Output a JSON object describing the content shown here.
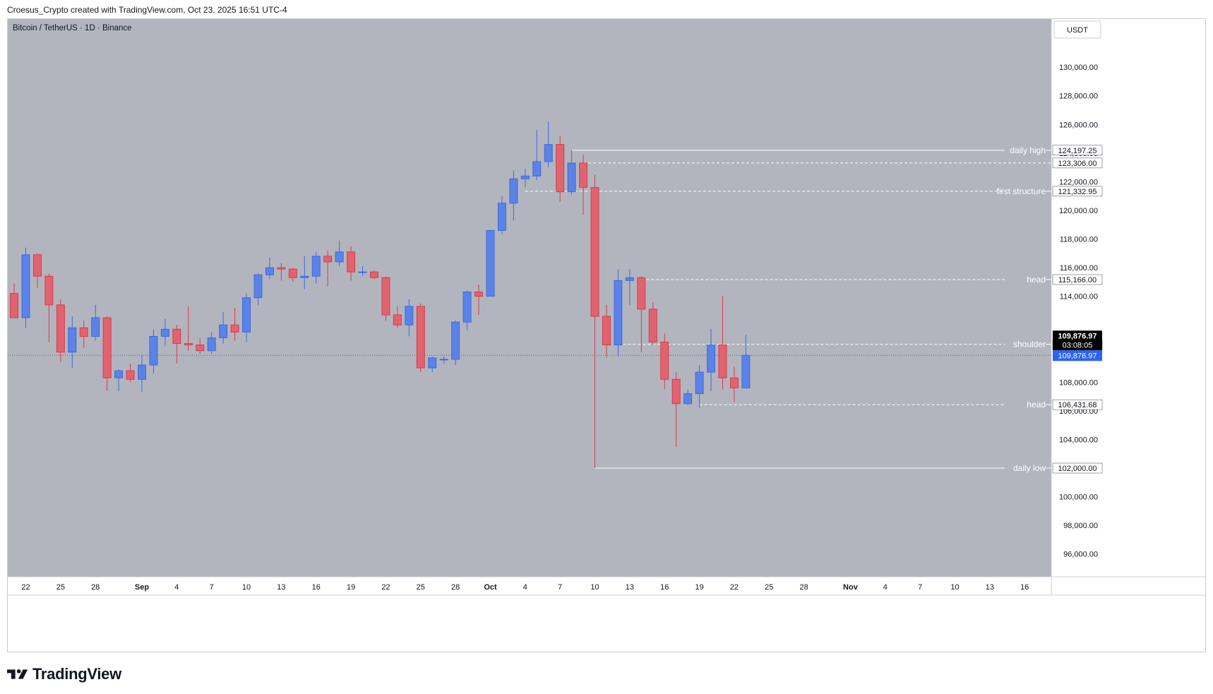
{
  "header": {
    "caption": "Croesus_Crypto created with TradingView.com, Oct 23, 2025 16:51 UTC-4"
  },
  "chart": {
    "symbol_title": "Bitcoin / TetherUS · 1D · Binance",
    "currency_button": "USDT",
    "countdown": "03:08:05",
    "colors": {
      "background": "#b2b5be",
      "up": "#5b82e6",
      "down": "#e06470",
      "wick_up": "#3d6ae0",
      "wick_down": "#d93a4a",
      "line": "#ffffff",
      "last_price_badge": "#2962ff",
      "axis_bg": "#ffffff"
    }
  },
  "footer": {
    "logo_text": "TradingView"
  },
  "chart_data": {
    "type": "candlestick",
    "title": "Bitcoin / TetherUS · 1D · Binance",
    "ylim": [
      95000,
      130500
    ],
    "y_ticks": [
      "96,000.00",
      "98,000.00",
      "100,000.00",
      "102,000.00",
      "104,000.00",
      "106,000.00",
      "108,000.00",
      "110,000.00",
      "114,000.00",
      "116,000.00",
      "118,000.00",
      "120,000.00",
      "122,000.00",
      "124,000.00",
      "126,000.00",
      "128,000.00",
      "130,000.00"
    ],
    "x_ticks": [
      "22",
      "25",
      "28",
      "Sep",
      "4",
      "7",
      "10",
      "13",
      "16",
      "19",
      "22",
      "25",
      "28",
      "Oct",
      "4",
      "7",
      "10",
      "13",
      "16",
      "19",
      "22",
      "25",
      "28",
      "Nov",
      "4",
      "7",
      "10",
      "13",
      "16"
    ],
    "candles": [
      {
        "date": "2025-08-21",
        "o": 114200,
        "h": 114900,
        "l": 112500,
        "c": 112500
      },
      {
        "date": "2025-08-22",
        "o": 112500,
        "h": 117400,
        "l": 111800,
        "c": 116900
      },
      {
        "date": "2025-08-23",
        "o": 116900,
        "h": 117000,
        "l": 114600,
        "c": 115400
      },
      {
        "date": "2025-08-24",
        "o": 115400,
        "h": 115600,
        "l": 110800,
        "c": 113400
      },
      {
        "date": "2025-08-25",
        "o": 113400,
        "h": 113800,
        "l": 109400,
        "c": 110100
      },
      {
        "date": "2025-08-26",
        "o": 110100,
        "h": 112600,
        "l": 109000,
        "c": 111800
      },
      {
        "date": "2025-08-27",
        "o": 111800,
        "h": 112300,
        "l": 110400,
        "c": 111200
      },
      {
        "date": "2025-08-28",
        "o": 111200,
        "h": 113400,
        "l": 110900,
        "c": 112500
      },
      {
        "date": "2025-08-29",
        "o": 112500,
        "h": 112600,
        "l": 107400,
        "c": 108300
      },
      {
        "date": "2025-08-30",
        "o": 108300,
        "h": 108900,
        "l": 107400,
        "c": 108800
      },
      {
        "date": "2025-08-31",
        "o": 108800,
        "h": 109300,
        "l": 108000,
        "c": 108200
      },
      {
        "date": "2025-09-01",
        "o": 108200,
        "h": 109900,
        "l": 107300,
        "c": 109200
      },
      {
        "date": "2025-09-02",
        "o": 109200,
        "h": 111700,
        "l": 108600,
        "c": 111200
      },
      {
        "date": "2025-09-03",
        "o": 111200,
        "h": 112400,
        "l": 110500,
        "c": 111700
      },
      {
        "date": "2025-09-04",
        "o": 111700,
        "h": 112000,
        "l": 109300,
        "c": 110700
      },
      {
        "date": "2025-09-05",
        "o": 110700,
        "h": 113300,
        "l": 110200,
        "c": 110600
      },
      {
        "date": "2025-09-06",
        "o": 110600,
        "h": 111100,
        "l": 110000,
        "c": 110200
      },
      {
        "date": "2025-09-07",
        "o": 110200,
        "h": 111500,
        "l": 110000,
        "c": 111100
      },
      {
        "date": "2025-09-08",
        "o": 111100,
        "h": 112900,
        "l": 110700,
        "c": 112000
      },
      {
        "date": "2025-09-09",
        "o": 112000,
        "h": 113200,
        "l": 110900,
        "c": 111500
      },
      {
        "date": "2025-09-10",
        "o": 111500,
        "h": 114200,
        "l": 110800,
        "c": 113900
      },
      {
        "date": "2025-09-11",
        "o": 113900,
        "h": 115600,
        "l": 113400,
        "c": 115500
      },
      {
        "date": "2025-09-12",
        "o": 115500,
        "h": 116700,
        "l": 115200,
        "c": 116000
      },
      {
        "date": "2025-09-13",
        "o": 116000,
        "h": 116300,
        "l": 115100,
        "c": 115900
      },
      {
        "date": "2025-09-14",
        "o": 115900,
        "h": 116000,
        "l": 115000,
        "c": 115300
      },
      {
        "date": "2025-09-15",
        "o": 115300,
        "h": 116800,
        "l": 114500,
        "c": 115400
      },
      {
        "date": "2025-09-16",
        "o": 115400,
        "h": 117100,
        "l": 114900,
        "c": 116800
      },
      {
        "date": "2025-09-17",
        "o": 116800,
        "h": 117200,
        "l": 114700,
        "c": 116400
      },
      {
        "date": "2025-09-18",
        "o": 116400,
        "h": 117900,
        "l": 116100,
        "c": 117100
      },
      {
        "date": "2025-09-19",
        "o": 117100,
        "h": 117500,
        "l": 115100,
        "c": 115700
      },
      {
        "date": "2025-09-20",
        "o": 115700,
        "h": 116100,
        "l": 115400,
        "c": 115700
      },
      {
        "date": "2025-09-21",
        "o": 115700,
        "h": 115800,
        "l": 115200,
        "c": 115300
      },
      {
        "date": "2025-09-22",
        "o": 115300,
        "h": 115400,
        "l": 112300,
        "c": 112700
      },
      {
        "date": "2025-09-23",
        "o": 112700,
        "h": 113300,
        "l": 111800,
        "c": 112000
      },
      {
        "date": "2025-09-24",
        "o": 112000,
        "h": 113800,
        "l": 111200,
        "c": 113300
      },
      {
        "date": "2025-09-25",
        "o": 113300,
        "h": 113500,
        "l": 108700,
        "c": 109000
      },
      {
        "date": "2025-09-26",
        "o": 109000,
        "h": 109800,
        "l": 108700,
        "c": 109700
      },
      {
        "date": "2025-09-27",
        "o": 109600,
        "h": 109800,
        "l": 109300,
        "c": 109600
      },
      {
        "date": "2025-09-28",
        "o": 109600,
        "h": 112300,
        "l": 109200,
        "c": 112200
      },
      {
        "date": "2025-09-29",
        "o": 112200,
        "h": 114400,
        "l": 111600,
        "c": 114300
      },
      {
        "date": "2025-09-30",
        "o": 114300,
        "h": 114800,
        "l": 112700,
        "c": 114000
      },
      {
        "date": "2025-10-01",
        "o": 114000,
        "h": 118600,
        "l": 114000,
        "c": 118600
      },
      {
        "date": "2025-10-02",
        "o": 118600,
        "h": 121000,
        "l": 118300,
        "c": 120500
      },
      {
        "date": "2025-10-03",
        "o": 120500,
        "h": 122800,
        "l": 119300,
        "c": 122200
      },
      {
        "date": "2025-10-04",
        "o": 122200,
        "h": 122900,
        "l": 121600,
        "c": 122400
      },
      {
        "date": "2025-10-05",
        "o": 122400,
        "h": 125600,
        "l": 122100,
        "c": 123400
      },
      {
        "date": "2025-10-06",
        "o": 123400,
        "h": 126200,
        "l": 123000,
        "c": 124600
      },
      {
        "date": "2025-10-07",
        "o": 124600,
        "h": 125200,
        "l": 120600,
        "c": 121300
      },
      {
        "date": "2025-10-08",
        "o": 121300,
        "h": 124200,
        "l": 121100,
        "c": 123300
      },
      {
        "date": "2025-10-09",
        "o": 123300,
        "h": 123900,
        "l": 119700,
        "c": 121600
      },
      {
        "date": "2025-10-10",
        "o": 121600,
        "h": 122500,
        "l": 102000,
        "c": 112600
      },
      {
        "date": "2025-10-11",
        "o": 112600,
        "h": 113400,
        "l": 109700,
        "c": 110600
      },
      {
        "date": "2025-10-12",
        "o": 110600,
        "h": 115900,
        "l": 109800,
        "c": 115100
      },
      {
        "date": "2025-10-13",
        "o": 115100,
        "h": 115900,
        "l": 113400,
        "c": 115300
      },
      {
        "date": "2025-10-14",
        "o": 115300,
        "h": 115400,
        "l": 110100,
        "c": 113100
      },
      {
        "date": "2025-10-15",
        "o": 113100,
        "h": 113600,
        "l": 110600,
        "c": 110800
      },
      {
        "date": "2025-10-16",
        "o": 110800,
        "h": 111400,
        "l": 107500,
        "c": 108200
      },
      {
        "date": "2025-10-17",
        "o": 108200,
        "h": 108700,
        "l": 103500,
        "c": 106500
      },
      {
        "date": "2025-10-18",
        "o": 106500,
        "h": 107500,
        "l": 106400,
        "c": 107200
      },
      {
        "date": "2025-10-19",
        "o": 107200,
        "h": 109200,
        "l": 106200,
        "c": 108700
      },
      {
        "date": "2025-10-20",
        "o": 108700,
        "h": 111700,
        "l": 107400,
        "c": 110600
      },
      {
        "date": "2025-10-21",
        "o": 110600,
        "h": 114000,
        "l": 107500,
        "c": 108300
      },
      {
        "date": "2025-10-22",
        "o": 108300,
        "h": 109100,
        "l": 106600,
        "c": 107600
      },
      {
        "date": "2025-10-23",
        "o": 107600,
        "h": 111300,
        "l": 107600,
        "c": 109876.97
      }
    ],
    "levels": [
      {
        "label": "daily high",
        "price": 124197.25,
        "price_label": "124,197.25",
        "style": "solid",
        "from": "2025-10-08"
      },
      {
        "label": "",
        "price": 123306.0,
        "price_label": "123,306.00",
        "style": "dashed",
        "from": "2025-10-09"
      },
      {
        "label": "first structure",
        "price": 121332.95,
        "price_label": "121,332.95",
        "style": "dashed",
        "from": "2025-10-04"
      },
      {
        "label": "head",
        "price": 115166.0,
        "price_label": "115,166.00",
        "style": "dashed",
        "from": "2025-10-14"
      },
      {
        "label": "",
        "price": 110644.4,
        "price_label": "110,644.40",
        "style": "none",
        "from": ""
      },
      {
        "label": "shoulder",
        "price": 110644.4,
        "price_label": "",
        "style": "dashed",
        "from": "2025-10-12"
      },
      {
        "label": "head",
        "price": 106431.68,
        "price_label": "106,431.68",
        "style": "dashed",
        "from": "2025-10-19"
      },
      {
        "label": "daily low",
        "price": 102000.0,
        "price_label": "102,000.00",
        "style": "solid",
        "from": "2025-10-10"
      }
    ],
    "last_price": 109876.97,
    "last_price_label": "109,876.97"
  }
}
